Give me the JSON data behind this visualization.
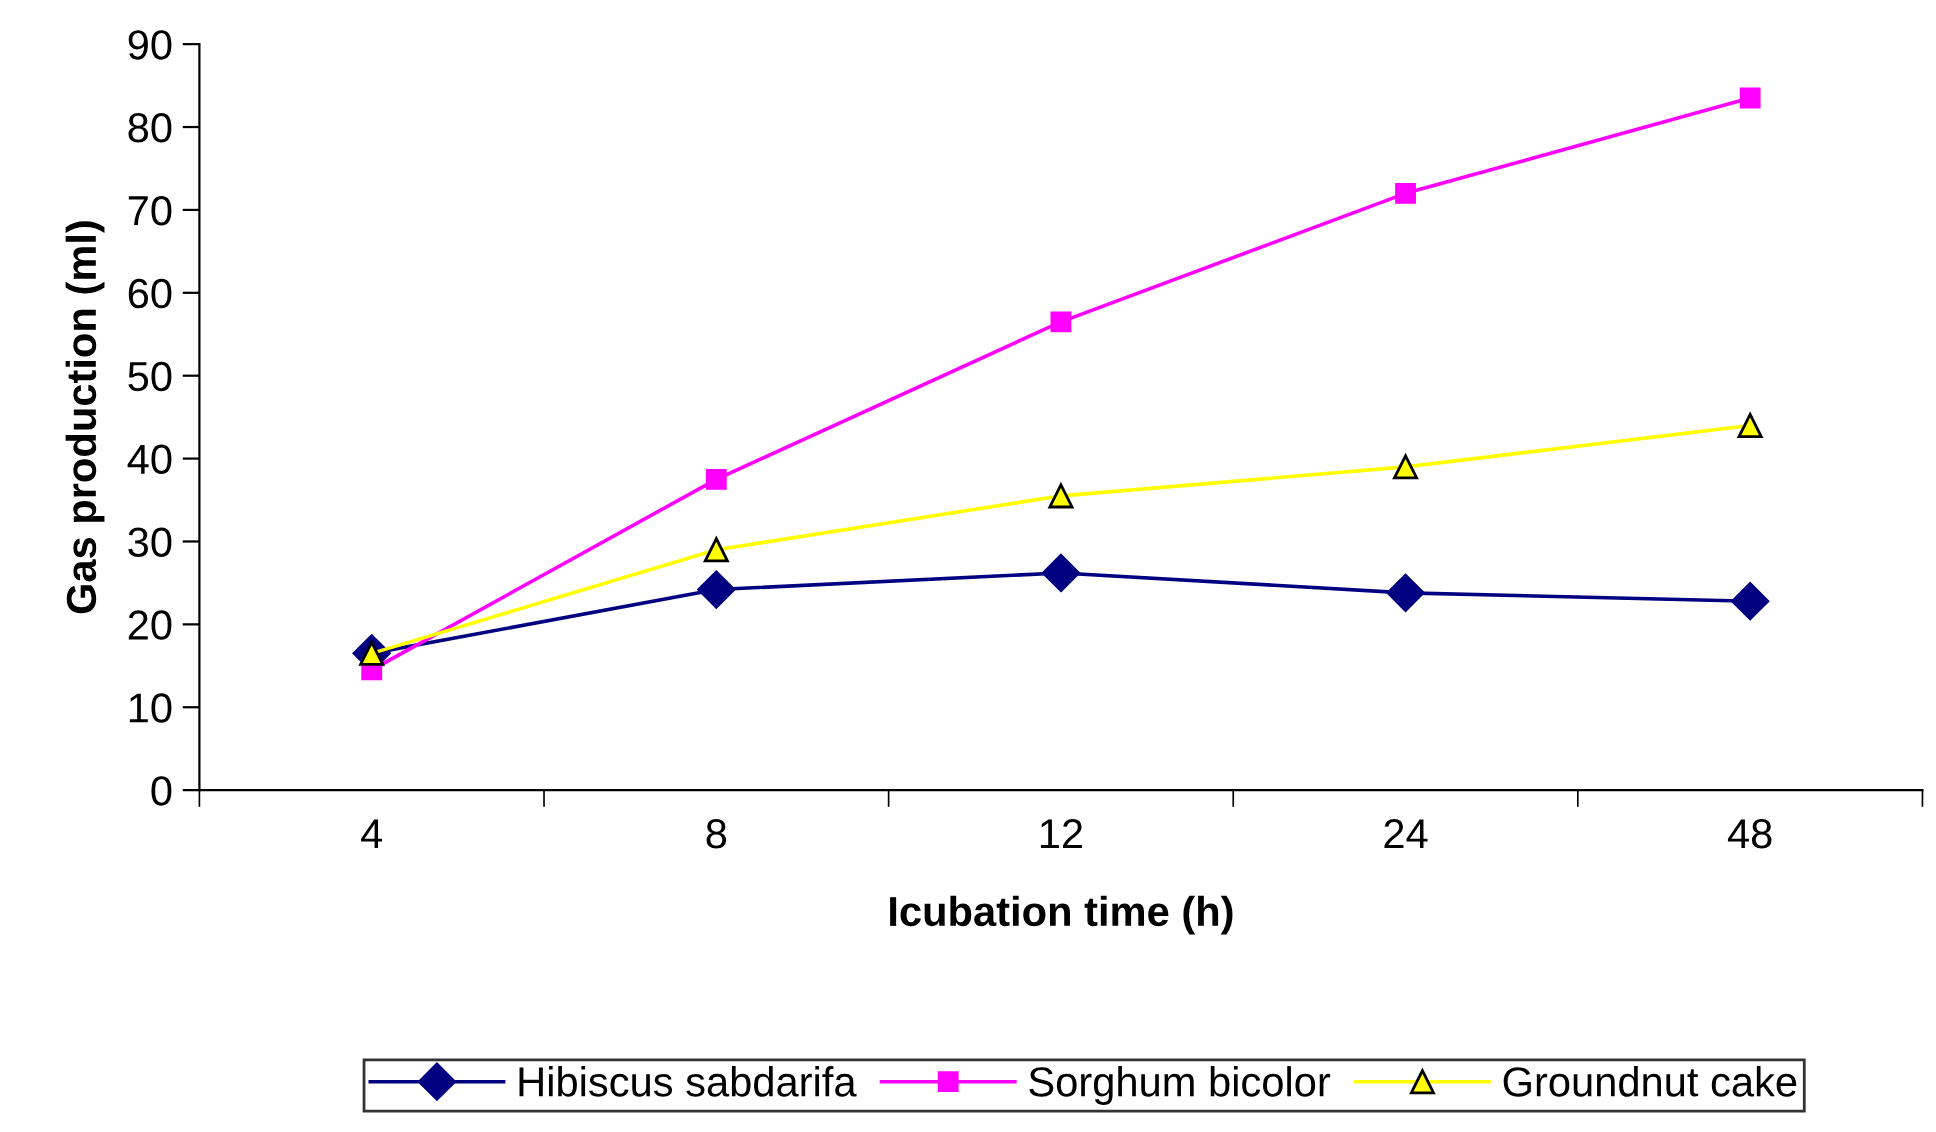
{
  "chart_data": {
    "type": "line",
    "xlabel": "Icubation time (h)",
    "ylabel": "Gas production (ml)",
    "categories": [
      "4",
      "8",
      "12",
      "24",
      "48"
    ],
    "ylim": [
      0,
      90
    ],
    "yticks": [
      0,
      10,
      20,
      30,
      40,
      50,
      60,
      70,
      80,
      90
    ],
    "grid": false,
    "legend": "bottom",
    "series": [
      {
        "name": "Hibiscus sabdarifa",
        "color": "#000080",
        "marker": "diamond",
        "values": [
          16.5,
          24.2,
          26.2,
          23.8,
          22.8
        ]
      },
      {
        "name": "Sorghum bicolor",
        "color": "#ff00ff",
        "marker": "square",
        "values": [
          14.5,
          37.5,
          56.5,
          72,
          83.5
        ]
      },
      {
        "name": "Groundnut cake",
        "color": "#ffff00",
        "marker": "triangle",
        "values": [
          16.5,
          29,
          35.5,
          39,
          44
        ]
      }
    ]
  }
}
